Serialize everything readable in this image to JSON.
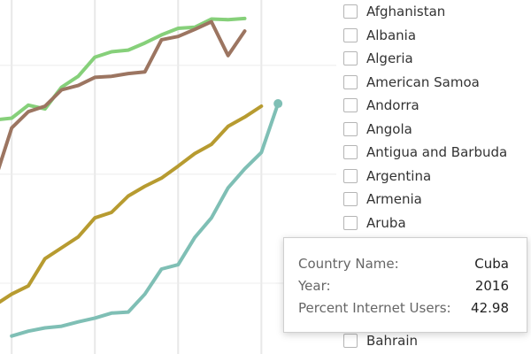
{
  "chart_data": {
    "type": "line",
    "title": "",
    "xlabel": "",
    "ylabel": "",
    "x_range": [
      1999.3,
      2019.5
    ],
    "y_range": [
      -3,
      62
    ],
    "grid": "vertical and horizontal, light gray",
    "series": [
      {
        "color": "#86d07a",
        "points": [
          [
            1999,
            40
          ],
          [
            2000,
            40.3
          ],
          [
            2001,
            42.7
          ],
          [
            2002,
            42
          ],
          [
            2003,
            46
          ],
          [
            2004,
            48
          ],
          [
            2005,
            51.5
          ],
          [
            2006,
            52.5
          ],
          [
            2007,
            52.8
          ],
          [
            2008,
            54.1
          ],
          [
            2009,
            55.6
          ],
          [
            2010,
            56.8
          ],
          [
            2011,
            57
          ],
          [
            2012,
            58.5
          ],
          [
            2013,
            58.4
          ],
          [
            2014,
            58.6
          ]
        ]
      },
      {
        "color": "#9c7561",
        "points": [
          [
            1999,
            29
          ],
          [
            2000,
            38.5
          ],
          [
            2001,
            41.5
          ],
          [
            2002,
            42.5
          ],
          [
            2003,
            45.5
          ],
          [
            2004,
            46.3
          ],
          [
            2005,
            47.8
          ],
          [
            2006,
            48
          ],
          [
            2007,
            48.5
          ],
          [
            2008,
            48.8
          ],
          [
            2009,
            54.7
          ],
          [
            2010,
            55.3
          ],
          [
            2011,
            56.6
          ],
          [
            2012,
            58
          ],
          [
            2013,
            51.8
          ],
          [
            2014,
            56.3
          ]
        ]
      },
      {
        "color": "#b79b30",
        "points": [
          [
            1999,
            6
          ],
          [
            2000,
            8
          ],
          [
            2001,
            9.5
          ],
          [
            2002,
            14.5
          ],
          [
            2003,
            16.5
          ],
          [
            2004,
            18.5
          ],
          [
            2005,
            22
          ],
          [
            2006,
            23
          ],
          [
            2007,
            26
          ],
          [
            2008,
            27.8
          ],
          [
            2009,
            29.3
          ],
          [
            2010,
            31.5
          ],
          [
            2011,
            33.8
          ],
          [
            2012,
            35.5
          ],
          [
            2013,
            38.8
          ],
          [
            2014,
            40.5
          ],
          [
            2015,
            42.5
          ]
        ]
      },
      {
        "color": "#7fbfb5",
        "points": [
          [
            2000,
            0.3
          ],
          [
            2001,
            1.2
          ],
          [
            2002,
            1.8
          ],
          [
            2003,
            2.1
          ],
          [
            2004,
            2.9
          ],
          [
            2005,
            3.6
          ],
          [
            2006,
            4.5
          ],
          [
            2007,
            4.7
          ],
          [
            2008,
            8
          ],
          [
            2009,
            12.6
          ],
          [
            2010,
            13.4
          ],
          [
            2011,
            18.4
          ],
          [
            2012,
            22
          ],
          [
            2013,
            27.5
          ],
          [
            2014,
            31
          ],
          [
            2015,
            34
          ],
          [
            2016,
            42.98
          ]
        ],
        "highlight": [
          2016,
          42.98
        ]
      }
    ]
  },
  "filter": {
    "items": [
      {
        "label": "Afghanistan"
      },
      {
        "label": "Albania"
      },
      {
        "label": "Algeria"
      },
      {
        "label": "American Samoa"
      },
      {
        "label": "Andorra"
      },
      {
        "label": "Angola"
      },
      {
        "label": "Antigua and Barbuda"
      },
      {
        "label": "Argentina"
      },
      {
        "label": "Armenia"
      },
      {
        "label": "Aruba"
      }
    ],
    "bottom_item": {
      "label": "Bahrain"
    }
  },
  "tooltip": {
    "country_label": "Country Name:",
    "country_value": "Cuba",
    "year_label": "Year:",
    "year_value": "2016",
    "pct_label": "Percent Internet Users:",
    "pct_value": "42.98"
  }
}
